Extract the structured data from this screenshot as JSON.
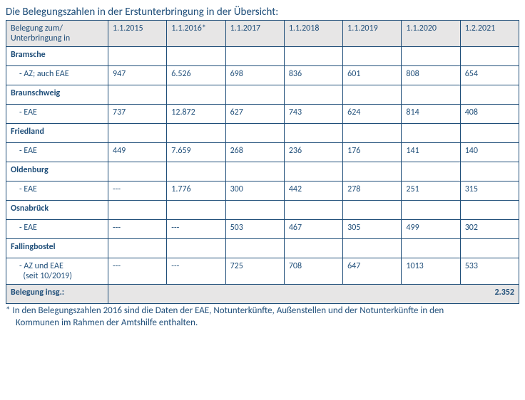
{
  "title": "Die Belegungszahlen in der Erstunterbringung in der Übersicht:",
  "header": {
    "col0_line1": "Belegung zum/",
    "col0_line2": "Unterbringung in",
    "cols": [
      "1.1.2015",
      "1.1.2016*",
      "1.1.2017",
      "1.1.2018",
      "1.1.2019",
      "1.1.2020",
      "1.2.2021"
    ]
  },
  "sections": [
    {
      "location": "Bramsche",
      "sub_label": "- AZ; auch EAE",
      "values": [
        "947",
        "6.526",
        "698",
        "836",
        "601",
        "808",
        "654"
      ]
    },
    {
      "location": "Braunschweig",
      "sub_label": "- EAE",
      "values": [
        "737",
        "12.872",
        "627",
        "743",
        "624",
        "814",
        "408"
      ]
    },
    {
      "location": "Friedland",
      "sub_label": "- EAE",
      "values": [
        "449",
        "7.659",
        "268",
        "236",
        "176",
        "141",
        "140"
      ]
    },
    {
      "location": "Oldenburg",
      "sub_label": "- EAE",
      "values": [
        "---",
        "1.776",
        "300",
        "442",
        "278",
        "251",
        "315"
      ]
    },
    {
      "location": "Osnabrück",
      "sub_label": "- EAE",
      "values": [
        "---",
        "---",
        "503",
        "467",
        "305",
        "499",
        "302"
      ]
    },
    {
      "location": "Fallingbostel",
      "sub_label": "- AZ und EAE",
      "sub_label2": "(seit 10/2019)",
      "values": [
        "---",
        "---",
        "725",
        "708",
        "647",
        "1013",
        "533"
      ]
    }
  ],
  "total": {
    "label": "Belegung insg.:",
    "value": "2.352"
  },
  "footnote": {
    "line1": "* In den Belegungszahlen 2016 sind die Daten der EAE, Notunterkünfte, Außenstellen und der Notunterkünfte in den",
    "line2": "Kommunen im Rahmen der Amtshilfe enthalten."
  }
}
